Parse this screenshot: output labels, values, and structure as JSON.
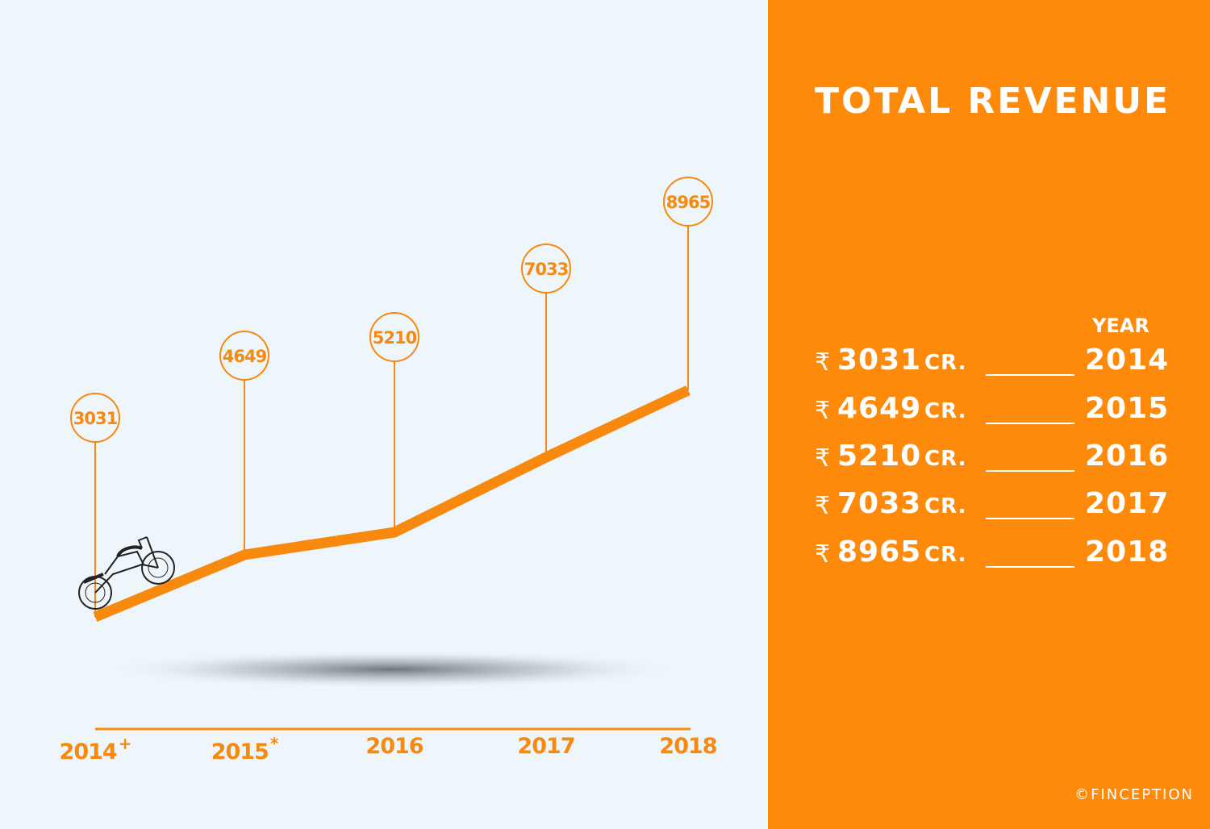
{
  "colors": {
    "accent": "#f7890f",
    "panel_bg": "#fd8a0b",
    "background": "#eef5fb",
    "panel_text": "#ffffff"
  },
  "chart_data": {
    "type": "line",
    "categories": [
      "2014",
      "2015",
      "2016",
      "2017",
      "2018"
    ],
    "category_labels": [
      {
        "text": "2014",
        "mark": "+"
      },
      {
        "text": "2015",
        "mark": "*"
      },
      {
        "text": "2016",
        "mark": ""
      },
      {
        "text": "2017",
        "mark": ""
      },
      {
        "text": "2018",
        "mark": ""
      }
    ],
    "values": [
      3031,
      4649,
      5210,
      7033,
      8965
    ],
    "data_labels": [
      "3031",
      "4649",
      "5210",
      "7033",
      "8965"
    ],
    "ylim": [
      3031,
      8965
    ],
    "grid": false,
    "icons": [
      "motorcycle-icon"
    ]
  },
  "panel": {
    "title": "TOTAL REVENUE",
    "year_header": "YEAR",
    "rows": [
      {
        "currency": "₹",
        "amount": "3031",
        "unit": "CR.",
        "year": "2014"
      },
      {
        "currency": "₹",
        "amount": "4649",
        "unit": "CR.",
        "year": "2015"
      },
      {
        "currency": "₹",
        "amount": "5210",
        "unit": "CR.",
        "year": "2016"
      },
      {
        "currency": "₹",
        "amount": "7033",
        "unit": "CR.",
        "year": "2017"
      },
      {
        "currency": "₹",
        "amount": "8965",
        "unit": "CR.",
        "year": "2018"
      }
    ],
    "credit": "©FINCEPTION"
  }
}
